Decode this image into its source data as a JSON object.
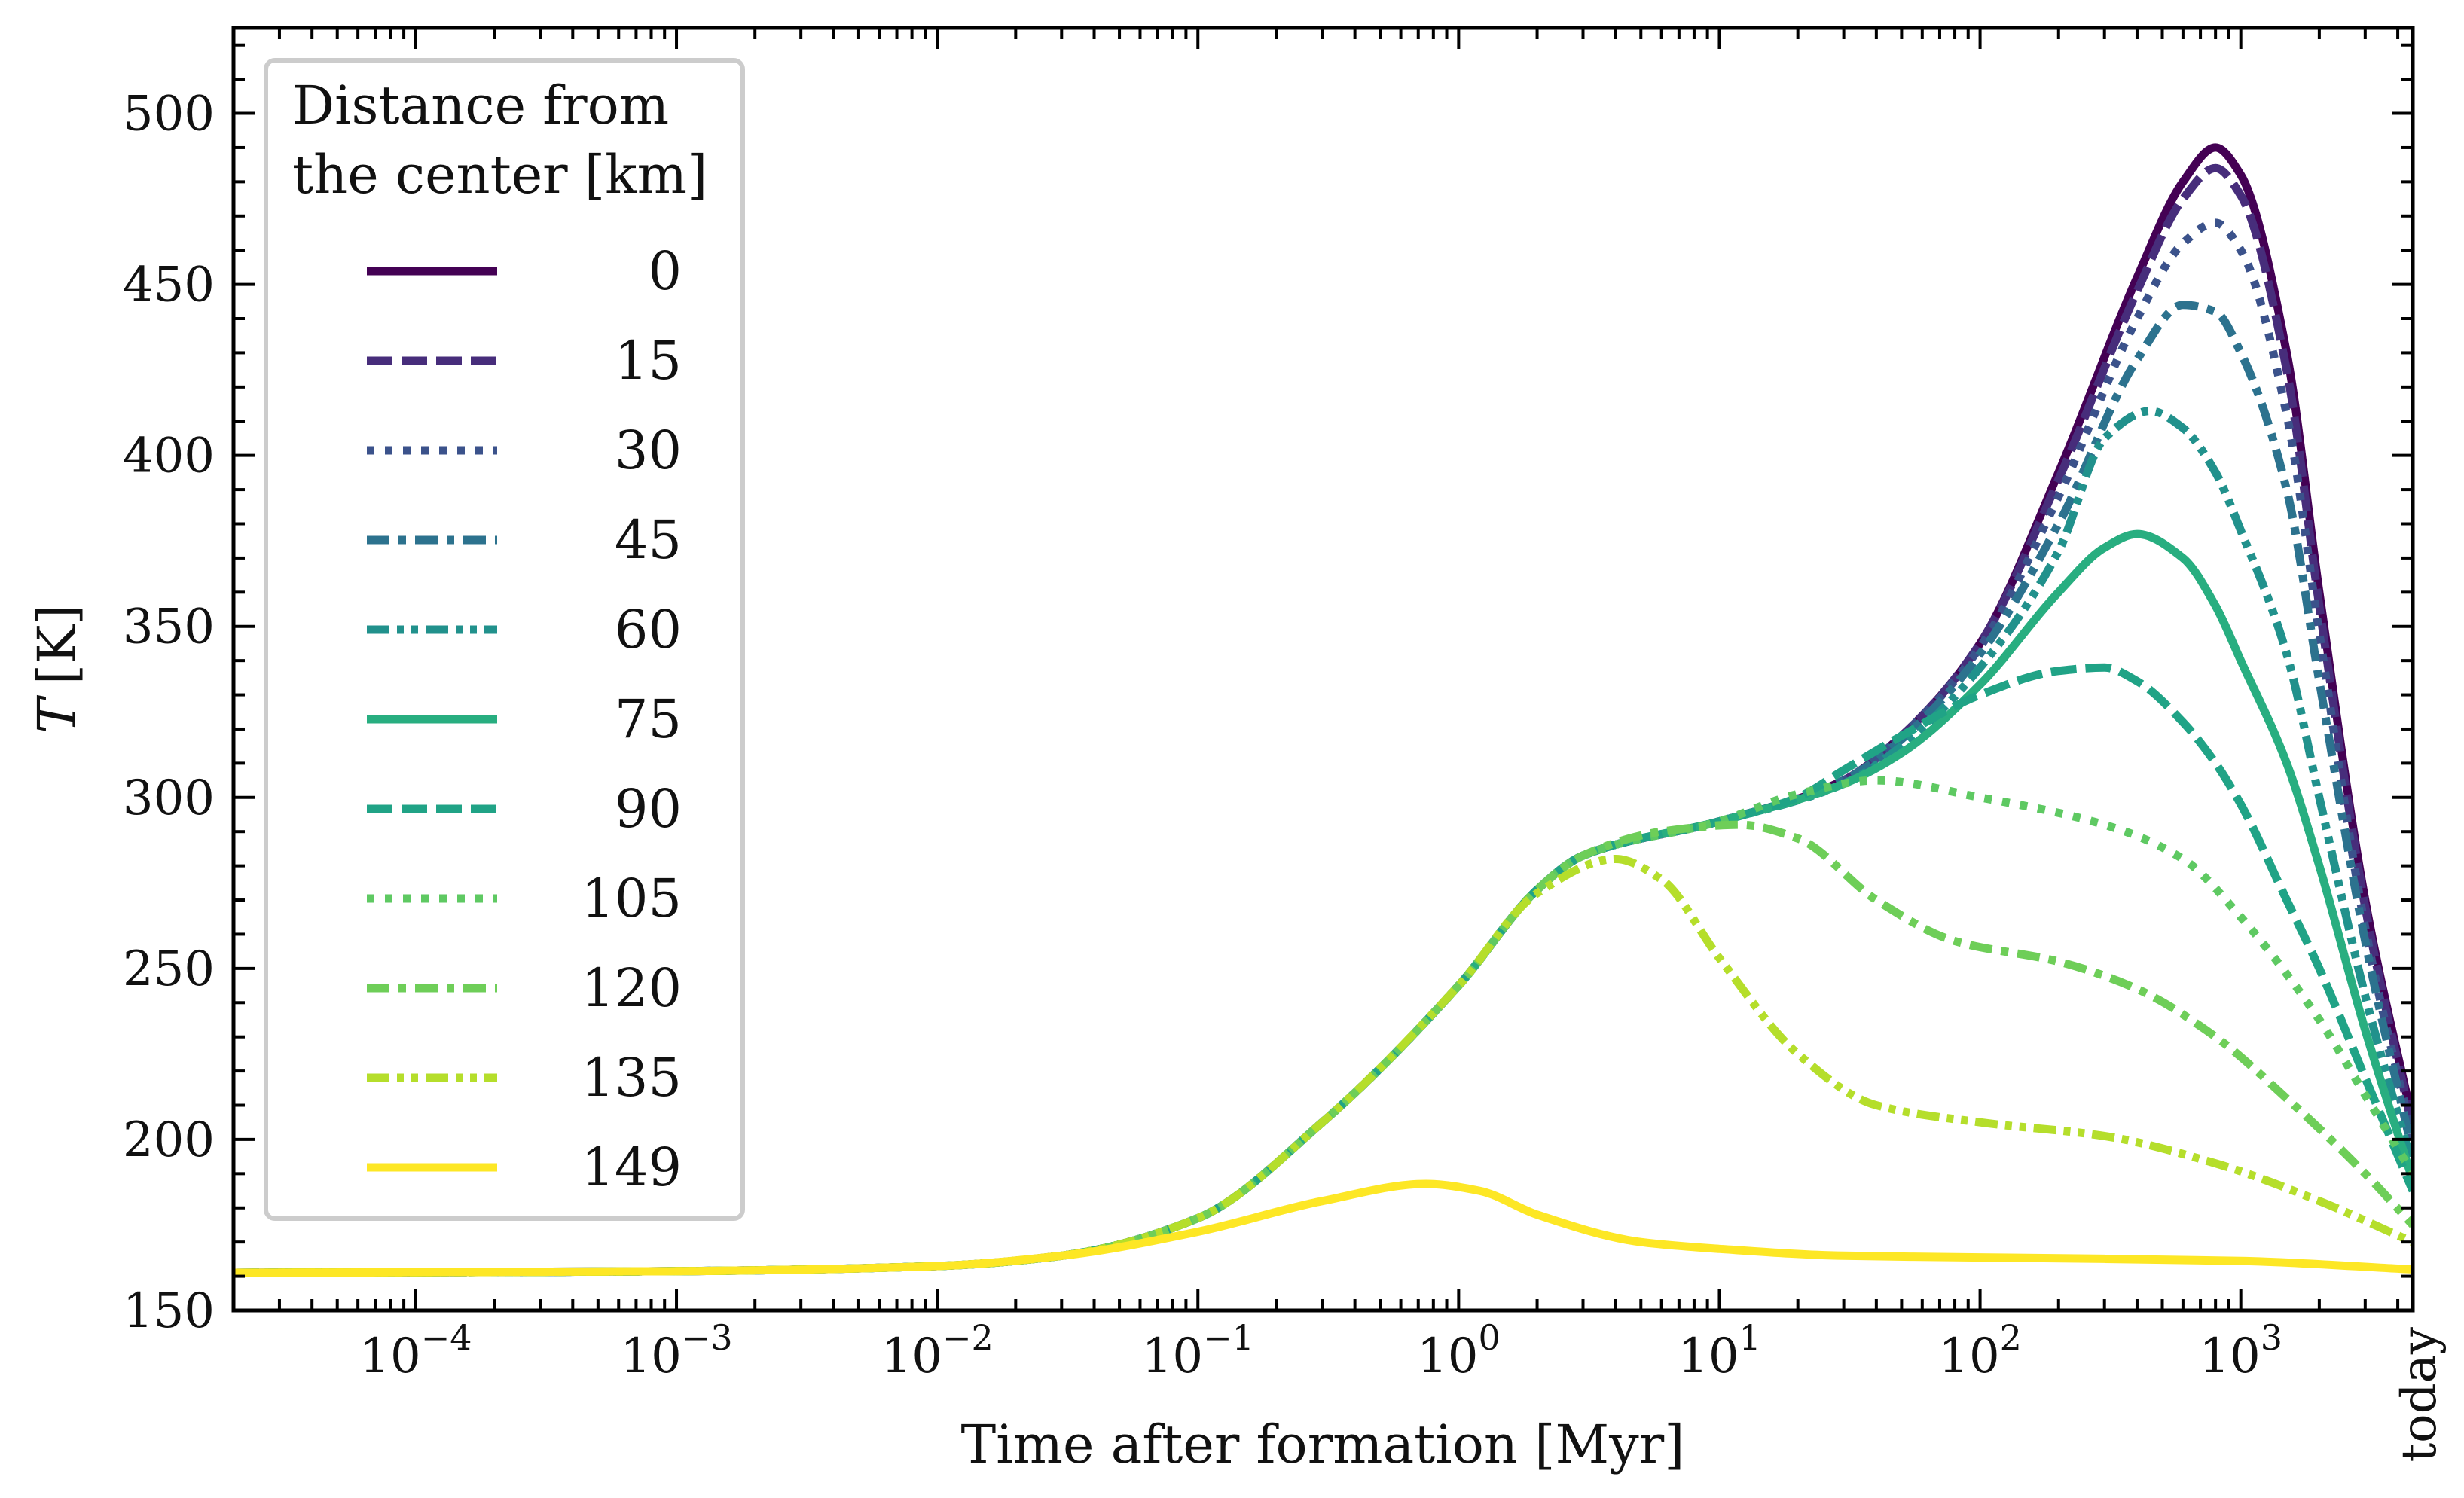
{
  "chart_data": {
    "type": "line",
    "xscale": "log",
    "xlim": [
      2e-05,
      4567
    ],
    "ylim": [
      150,
      525
    ],
    "xlabel": "Time after formation [Myr]",
    "ylabel_italic": "T",
    "ylabel_unit": "[K]",
    "x_ticks": [
      {
        "value": 0.0001,
        "base": "10",
        "exp": "−4"
      },
      {
        "value": 0.001,
        "base": "10",
        "exp": "−3"
      },
      {
        "value": 0.01,
        "base": "10",
        "exp": "−2"
      },
      {
        "value": 0.1,
        "base": "10",
        "exp": "−1"
      },
      {
        "value": 1,
        "base": "10",
        "exp": "0"
      },
      {
        "value": 10,
        "base": "10",
        "exp": "1"
      },
      {
        "value": 100,
        "base": "10",
        "exp": "2"
      },
      {
        "value": 1000,
        "base": "10",
        "exp": "3"
      }
    ],
    "x_end_label": "today",
    "y_ticks": [
      150,
      200,
      250,
      300,
      350,
      400,
      450,
      500
    ],
    "legend": {
      "title_line1": "Distance from",
      "title_line2": "the center [km]",
      "location": "upper-left"
    },
    "series": [
      {
        "name": "0",
        "color": "#440154",
        "dash": "solid",
        "points": [
          [
            2e-05,
            161
          ],
          [
            0.001,
            161.5
          ],
          [
            0.01,
            163
          ],
          [
            0.03,
            166
          ],
          [
            0.1,
            177
          ],
          [
            0.3,
            205
          ],
          [
            1,
            245
          ],
          [
            2,
            273
          ],
          [
            3,
            283
          ],
          [
            10,
            293
          ],
          [
            30,
            305
          ],
          [
            50,
            318
          ],
          [
            100,
            345
          ],
          [
            200,
            395
          ],
          [
            400,
            452
          ],
          [
            600,
            480
          ],
          [
            800,
            490
          ],
          [
            1000,
            482
          ],
          [
            1500,
            430
          ],
          [
            2000,
            360
          ],
          [
            3000,
            270
          ],
          [
            4567,
            205
          ]
        ]
      },
      {
        "name": "15",
        "color": "#472d7b",
        "dash": "dash",
        "points": [
          [
            2e-05,
            161
          ],
          [
            0.001,
            161.5
          ],
          [
            0.01,
            163
          ],
          [
            0.03,
            166
          ],
          [
            0.1,
            177
          ],
          [
            0.3,
            205
          ],
          [
            1,
            245
          ],
          [
            2,
            273
          ],
          [
            3,
            283
          ],
          [
            10,
            293
          ],
          [
            30,
            305
          ],
          [
            50,
            318
          ],
          [
            100,
            345
          ],
          [
            200,
            393
          ],
          [
            400,
            448
          ],
          [
            600,
            475
          ],
          [
            800,
            484
          ],
          [
            1000,
            476
          ],
          [
            1500,
            425
          ],
          [
            2000,
            356
          ],
          [
            3000,
            268
          ],
          [
            4567,
            203
          ]
        ]
      },
      {
        "name": "30",
        "color": "#3b528b",
        "dash": "dot",
        "points": [
          [
            2e-05,
            161
          ],
          [
            0.001,
            161.5
          ],
          [
            0.01,
            163
          ],
          [
            0.03,
            166
          ],
          [
            0.1,
            177
          ],
          [
            0.3,
            205
          ],
          [
            1,
            245
          ],
          [
            2,
            273
          ],
          [
            3,
            283
          ],
          [
            10,
            293
          ],
          [
            30,
            305
          ],
          [
            50,
            318
          ],
          [
            100,
            344
          ],
          [
            200,
            388
          ],
          [
            400,
            440
          ],
          [
            600,
            462
          ],
          [
            800,
            468
          ],
          [
            1000,
            460
          ],
          [
            1500,
            412
          ],
          [
            2000,
            348
          ],
          [
            3000,
            262
          ],
          [
            4567,
            200
          ]
        ]
      },
      {
        "name": "45",
        "color": "#2c728e",
        "dash": "dashdot",
        "points": [
          [
            2e-05,
            161
          ],
          [
            0.001,
            161.5
          ],
          [
            0.01,
            163
          ],
          [
            0.03,
            166
          ],
          [
            0.1,
            177
          ],
          [
            0.3,
            205
          ],
          [
            1,
            245
          ],
          [
            2,
            273
          ],
          [
            3,
            283
          ],
          [
            10,
            293
          ],
          [
            30,
            305
          ],
          [
            50,
            317
          ],
          [
            100,
            342
          ],
          [
            200,
            380
          ],
          [
            400,
            428
          ],
          [
            600,
            444
          ],
          [
            800,
            442
          ],
          [
            1000,
            430
          ],
          [
            1500,
            390
          ],
          [
            2000,
            334
          ],
          [
            3000,
            258
          ],
          [
            4567,
            196
          ]
        ]
      },
      {
        "name": "60",
        "color": "#21918c",
        "dash": "dashdotdot",
        "points": [
          [
            2e-05,
            161
          ],
          [
            0.001,
            161.5
          ],
          [
            0.01,
            163
          ],
          [
            0.03,
            166
          ],
          [
            0.1,
            177
          ],
          [
            0.3,
            205
          ],
          [
            1,
            245
          ],
          [
            2,
            273
          ],
          [
            3,
            283
          ],
          [
            10,
            293
          ],
          [
            30,
            304
          ],
          [
            50,
            315
          ],
          [
            100,
            338
          ],
          [
            200,
            372
          ],
          [
            300,
            405
          ],
          [
            450,
            413
          ],
          [
            600,
            408
          ],
          [
            800,
            395
          ],
          [
            1000,
            378
          ],
          [
            1500,
            342
          ],
          [
            2000,
            300
          ],
          [
            3000,
            242
          ],
          [
            4567,
            192
          ]
        ]
      },
      {
        "name": "75",
        "color": "#28ae80",
        "dash": "solid",
        "points": [
          [
            2e-05,
            161
          ],
          [
            0.001,
            161.5
          ],
          [
            0.01,
            163
          ],
          [
            0.03,
            166
          ],
          [
            0.1,
            177
          ],
          [
            0.3,
            205
          ],
          [
            1,
            245
          ],
          [
            2,
            273
          ],
          [
            3,
            283
          ],
          [
            10,
            293
          ],
          [
            30,
            304
          ],
          [
            50,
            313
          ],
          [
            100,
            333
          ],
          [
            200,
            360
          ],
          [
            300,
            373
          ],
          [
            400,
            377
          ],
          [
            600,
            370
          ],
          [
            800,
            356
          ],
          [
            1000,
            340
          ],
          [
            1500,
            310
          ],
          [
            2000,
            280
          ],
          [
            3000,
            232
          ],
          [
            4567,
            188
          ]
        ]
      },
      {
        "name": "90",
        "color": "#20a386",
        "dash": "dash",
        "points": [
          [
            2e-05,
            161
          ],
          [
            0.001,
            161.5
          ],
          [
            0.01,
            163
          ],
          [
            0.03,
            166
          ],
          [
            0.1,
            177
          ],
          [
            0.3,
            205
          ],
          [
            1,
            245
          ],
          [
            2,
            273
          ],
          [
            3,
            283
          ],
          [
            10,
            293
          ],
          [
            20,
            300
          ],
          [
            30,
            308
          ],
          [
            50,
            318
          ],
          [
            100,
            330
          ],
          [
            200,
            337
          ],
          [
            300,
            338
          ],
          [
            400,
            334
          ],
          [
            600,
            322
          ],
          [
            800,
            310
          ],
          [
            1000,
            298
          ],
          [
            1500,
            270
          ],
          [
            2000,
            250
          ],
          [
            3000,
            218
          ],
          [
            4567,
            185
          ]
        ]
      },
      {
        "name": "105",
        "color": "#5ec962",
        "dash": "dot",
        "points": [
          [
            2e-05,
            161
          ],
          [
            0.001,
            161.5
          ],
          [
            0.01,
            163
          ],
          [
            0.03,
            166
          ],
          [
            0.1,
            177
          ],
          [
            0.3,
            205
          ],
          [
            1,
            245
          ],
          [
            2,
            273
          ],
          [
            3,
            283
          ],
          [
            10,
            293
          ],
          [
            20,
            301
          ],
          [
            40,
            305
          ],
          [
            100,
            300
          ],
          [
            300,
            292
          ],
          [
            600,
            282
          ],
          [
            1000,
            265
          ],
          [
            2000,
            235
          ],
          [
            3000,
            213
          ],
          [
            4567,
            190
          ]
        ]
      },
      {
        "name": "120",
        "color": "#6ece58",
        "dash": "dashdot",
        "points": [
          [
            2e-05,
            161
          ],
          [
            0.001,
            161.5
          ],
          [
            0.01,
            163
          ],
          [
            0.03,
            166
          ],
          [
            0.1,
            177
          ],
          [
            0.3,
            205
          ],
          [
            1,
            245
          ],
          [
            2,
            273
          ],
          [
            3,
            283
          ],
          [
            6,
            290
          ],
          [
            12,
            292
          ],
          [
            20,
            288
          ],
          [
            40,
            270
          ],
          [
            80,
            258
          ],
          [
            200,
            252
          ],
          [
            400,
            244
          ],
          [
            800,
            230
          ],
          [
            1500,
            212
          ],
          [
            3000,
            190
          ],
          [
            4567,
            175
          ]
        ]
      },
      {
        "name": "135",
        "color": "#b5de2b",
        "dash": "dashdotdot",
        "points": [
          [
            2e-05,
            161
          ],
          [
            0.001,
            161.5
          ],
          [
            0.01,
            163
          ],
          [
            0.03,
            166
          ],
          [
            0.1,
            177
          ],
          [
            0.3,
            205
          ],
          [
            1,
            245
          ],
          [
            2,
            272
          ],
          [
            4,
            282
          ],
          [
            6,
            276
          ],
          [
            10,
            253
          ],
          [
            20,
            225
          ],
          [
            40,
            210
          ],
          [
            100,
            205
          ],
          [
            300,
            201
          ],
          [
            800,
            193
          ],
          [
            2000,
            182
          ],
          [
            4567,
            170
          ]
        ]
      },
      {
        "name": "149",
        "color": "#fde725",
        "dash": "solid",
        "points": [
          [
            2e-05,
            161
          ],
          [
            0.001,
            161.5
          ],
          [
            0.01,
            163
          ],
          [
            0.03,
            166
          ],
          [
            0.1,
            173
          ],
          [
            0.3,
            182
          ],
          [
            0.75,
            187
          ],
          [
            1.2,
            185
          ],
          [
            2,
            178
          ],
          [
            5,
            170
          ],
          [
            10,
            168
          ],
          [
            30,
            166
          ],
          [
            100,
            165.5
          ],
          [
            1000,
            164.5
          ],
          [
            4567,
            162
          ]
        ]
      }
    ]
  }
}
